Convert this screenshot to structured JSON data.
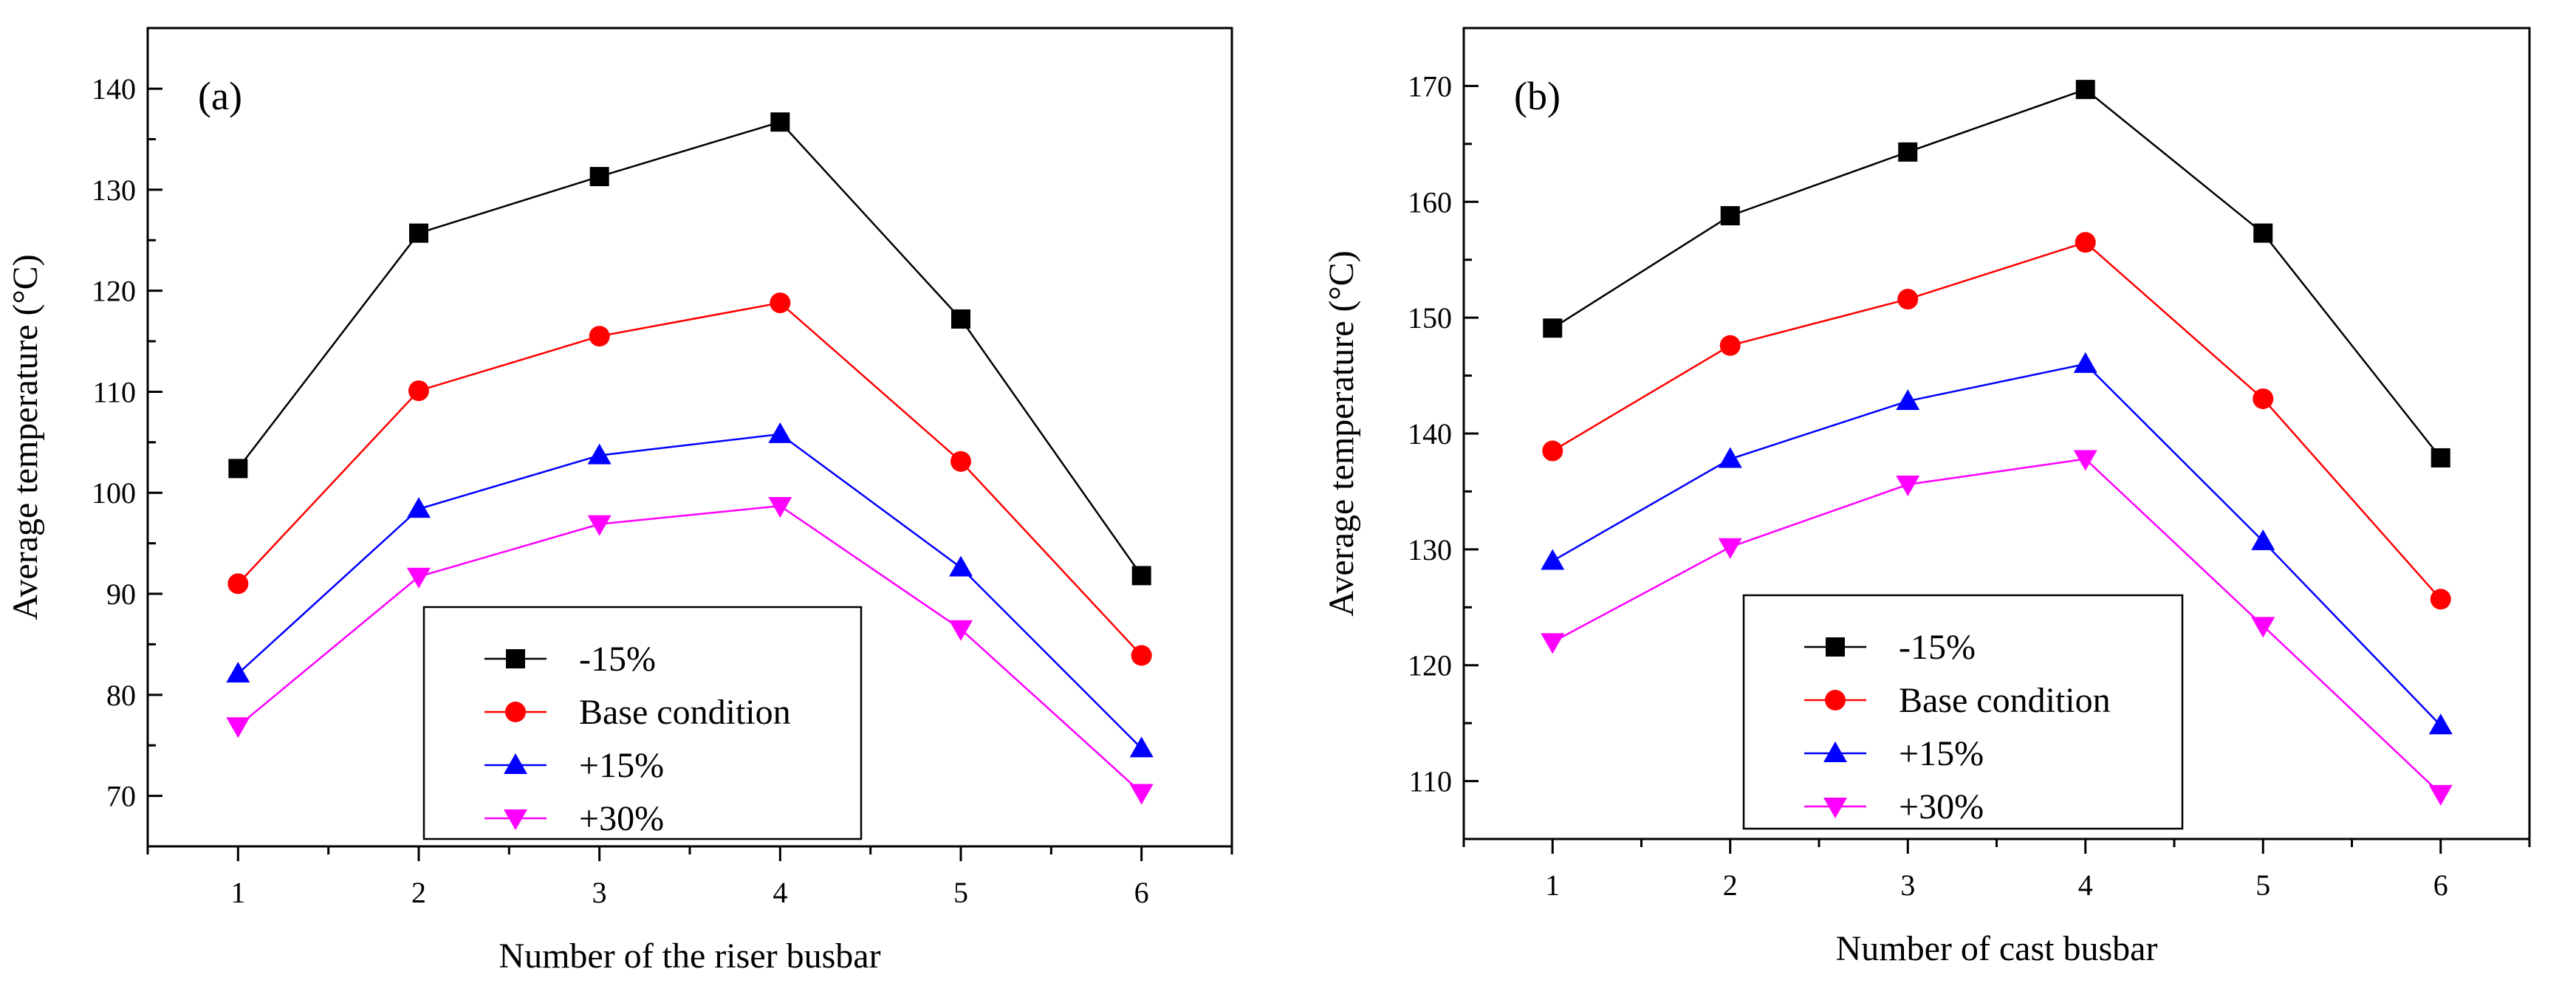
{
  "chart_data": [
    {
      "type": "line",
      "panel_label": "(a)",
      "xlabel": "Number of the riser busbar",
      "ylabel": "Average temperature (°C)",
      "categories": [
        1,
        2,
        3,
        4,
        5,
        6
      ],
      "x_tick_labels": [
        "1",
        "2",
        "3",
        "4",
        "5",
        "6"
      ],
      "xlim": [
        0.5,
        6.5
      ],
      "ylim": [
        65,
        146
      ],
      "y_ticks": [
        70,
        80,
        90,
        100,
        110,
        120,
        130,
        140
      ],
      "y_tick_labels": [
        "70",
        "80",
        "90",
        "100",
        "110",
        "120",
        "130",
        "140"
      ],
      "legend_position": "bottom-center",
      "grid": false,
      "series": [
        {
          "name": "-15%",
          "color": "#000000",
          "marker": "square",
          "values": [
            102.4,
            125.7,
            131.3,
            136.7,
            117.2,
            91.8
          ]
        },
        {
          "name": "Base condition",
          "color": "#ff0000",
          "marker": "circle",
          "values": [
            91.0,
            110.1,
            115.5,
            118.8,
            103.1,
            83.9
          ]
        },
        {
          "name": "+15%",
          "color": "#0000ff",
          "marker": "triangle-up",
          "values": [
            82.1,
            98.4,
            103.7,
            105.8,
            92.6,
            74.7
          ]
        },
        {
          "name": "+30%",
          "color": "#ff00ff",
          "marker": "triangle-down",
          "values": [
            76.9,
            91.7,
            96.9,
            98.7,
            86.5,
            70.3
          ]
        }
      ]
    },
    {
      "type": "line",
      "panel_label": "(b)",
      "xlabel": "Number of cast busbar",
      "ylabel": "Average temperature (°C)",
      "categories": [
        1,
        2,
        3,
        4,
        5,
        6
      ],
      "x_tick_labels": [
        "1",
        "2",
        "3",
        "4",
        "5",
        "6"
      ],
      "xlim": [
        0.5,
        6.5
      ],
      "ylim": [
        105,
        175
      ],
      "y_ticks": [
        110,
        120,
        130,
        140,
        150,
        160,
        170
      ],
      "y_tick_labels": [
        "110",
        "120",
        "130",
        "140",
        "150",
        "160",
        "170"
      ],
      "legend_position": "bottom-center",
      "grid": false,
      "series": [
        {
          "name": "-15%",
          "color": "#000000",
          "marker": "square",
          "values": [
            149.1,
            158.8,
            164.3,
            169.7,
            157.3,
            137.9
          ]
        },
        {
          "name": "Base condition",
          "color": "#ff0000",
          "marker": "circle",
          "values": [
            138.5,
            147.6,
            151.6,
            156.5,
            143.0,
            125.7
          ]
        },
        {
          "name": "+15%",
          "color": "#0000ff",
          "marker": "triangle-up",
          "values": [
            129.0,
            137.8,
            142.8,
            146.0,
            130.7,
            114.8
          ]
        },
        {
          "name": "+30%",
          "color": "#ff00ff",
          "marker": "triangle-down",
          "values": [
            122.0,
            130.2,
            135.6,
            137.8,
            123.4,
            108.9
          ]
        }
      ]
    }
  ]
}
